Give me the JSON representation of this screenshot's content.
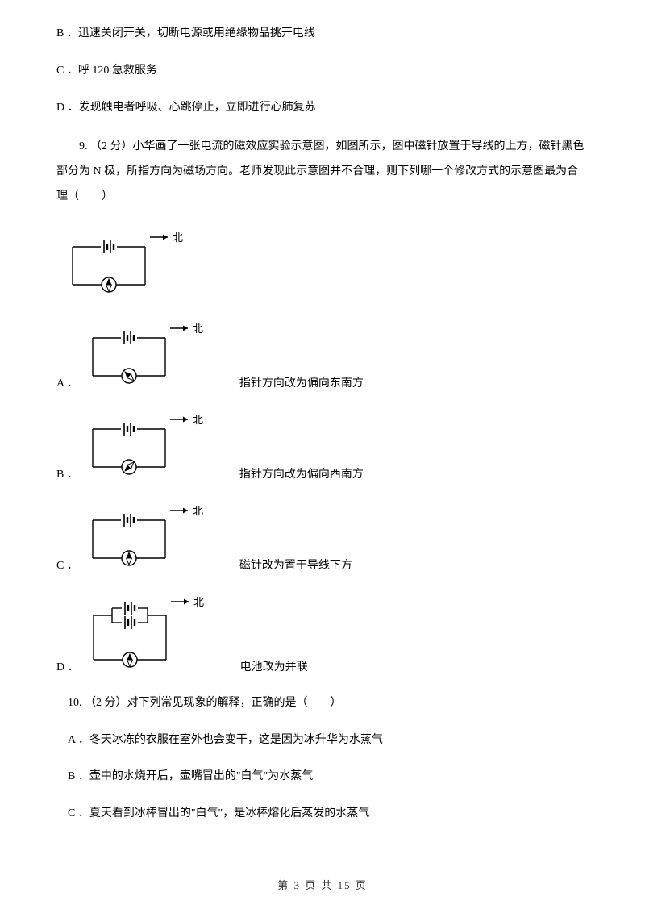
{
  "q8": {
    "optB": "B ．迅速关闭开关，切断电源或用绝缘物品挑开电线",
    "optC": "C ．呼 120 急救服务",
    "optD": "D ．发现触电者呼吸、心跳停止，立即进行心肺复苏"
  },
  "q9": {
    "stem": "9. （2 分）小华画了一张电流的磁效应实验示意图，如图所示，图中磁针放置于导线的上方，磁针黑色部分为 N 极，所指方向为磁场方向。老师发现此示意图并不合理，则下列哪一个修改方式的示意图最为合理（　　）",
    "north_label": "北",
    "optA_prefix": "A ．",
    "optA_text": "指针方向改为偏向东南方",
    "optB_prefix": "B ．",
    "optB_text": "指针方向改为偏向西南方",
    "optC_prefix": "C ．",
    "optC_text": "磁针改为置于导线下方",
    "optD_prefix": "D ．",
    "optD_text": "电池改为并联"
  },
  "q10": {
    "stem": "10. （2 分）对下列常见现象的解释，正确的是（　　）",
    "optA": "A ．冬天冰冻的衣服在室外也会变干，这是因为冰升华为水蒸气",
    "optB": "B ．壶中的水烧开后，壶嘴冒出的\"白气\"为水蒸气",
    "optC": "C ．夏天看到冰棒冒出的\"白气\"，是冰棒熔化后蒸发的水蒸气"
  },
  "footer": "第 3 页 共 15 页",
  "style": {
    "circuit": {
      "single_w": 130,
      "single_h": 75,
      "parallel_w": 130,
      "parallel_h": 90,
      "stroke": "#000000",
      "stroke_w": 1.4,
      "north_font": 13
    },
    "compass": {
      "main_angle": 0,
      "A_angle": 315,
      "B_angle": 225,
      "C_angle": 0,
      "D_angle": 0
    }
  }
}
